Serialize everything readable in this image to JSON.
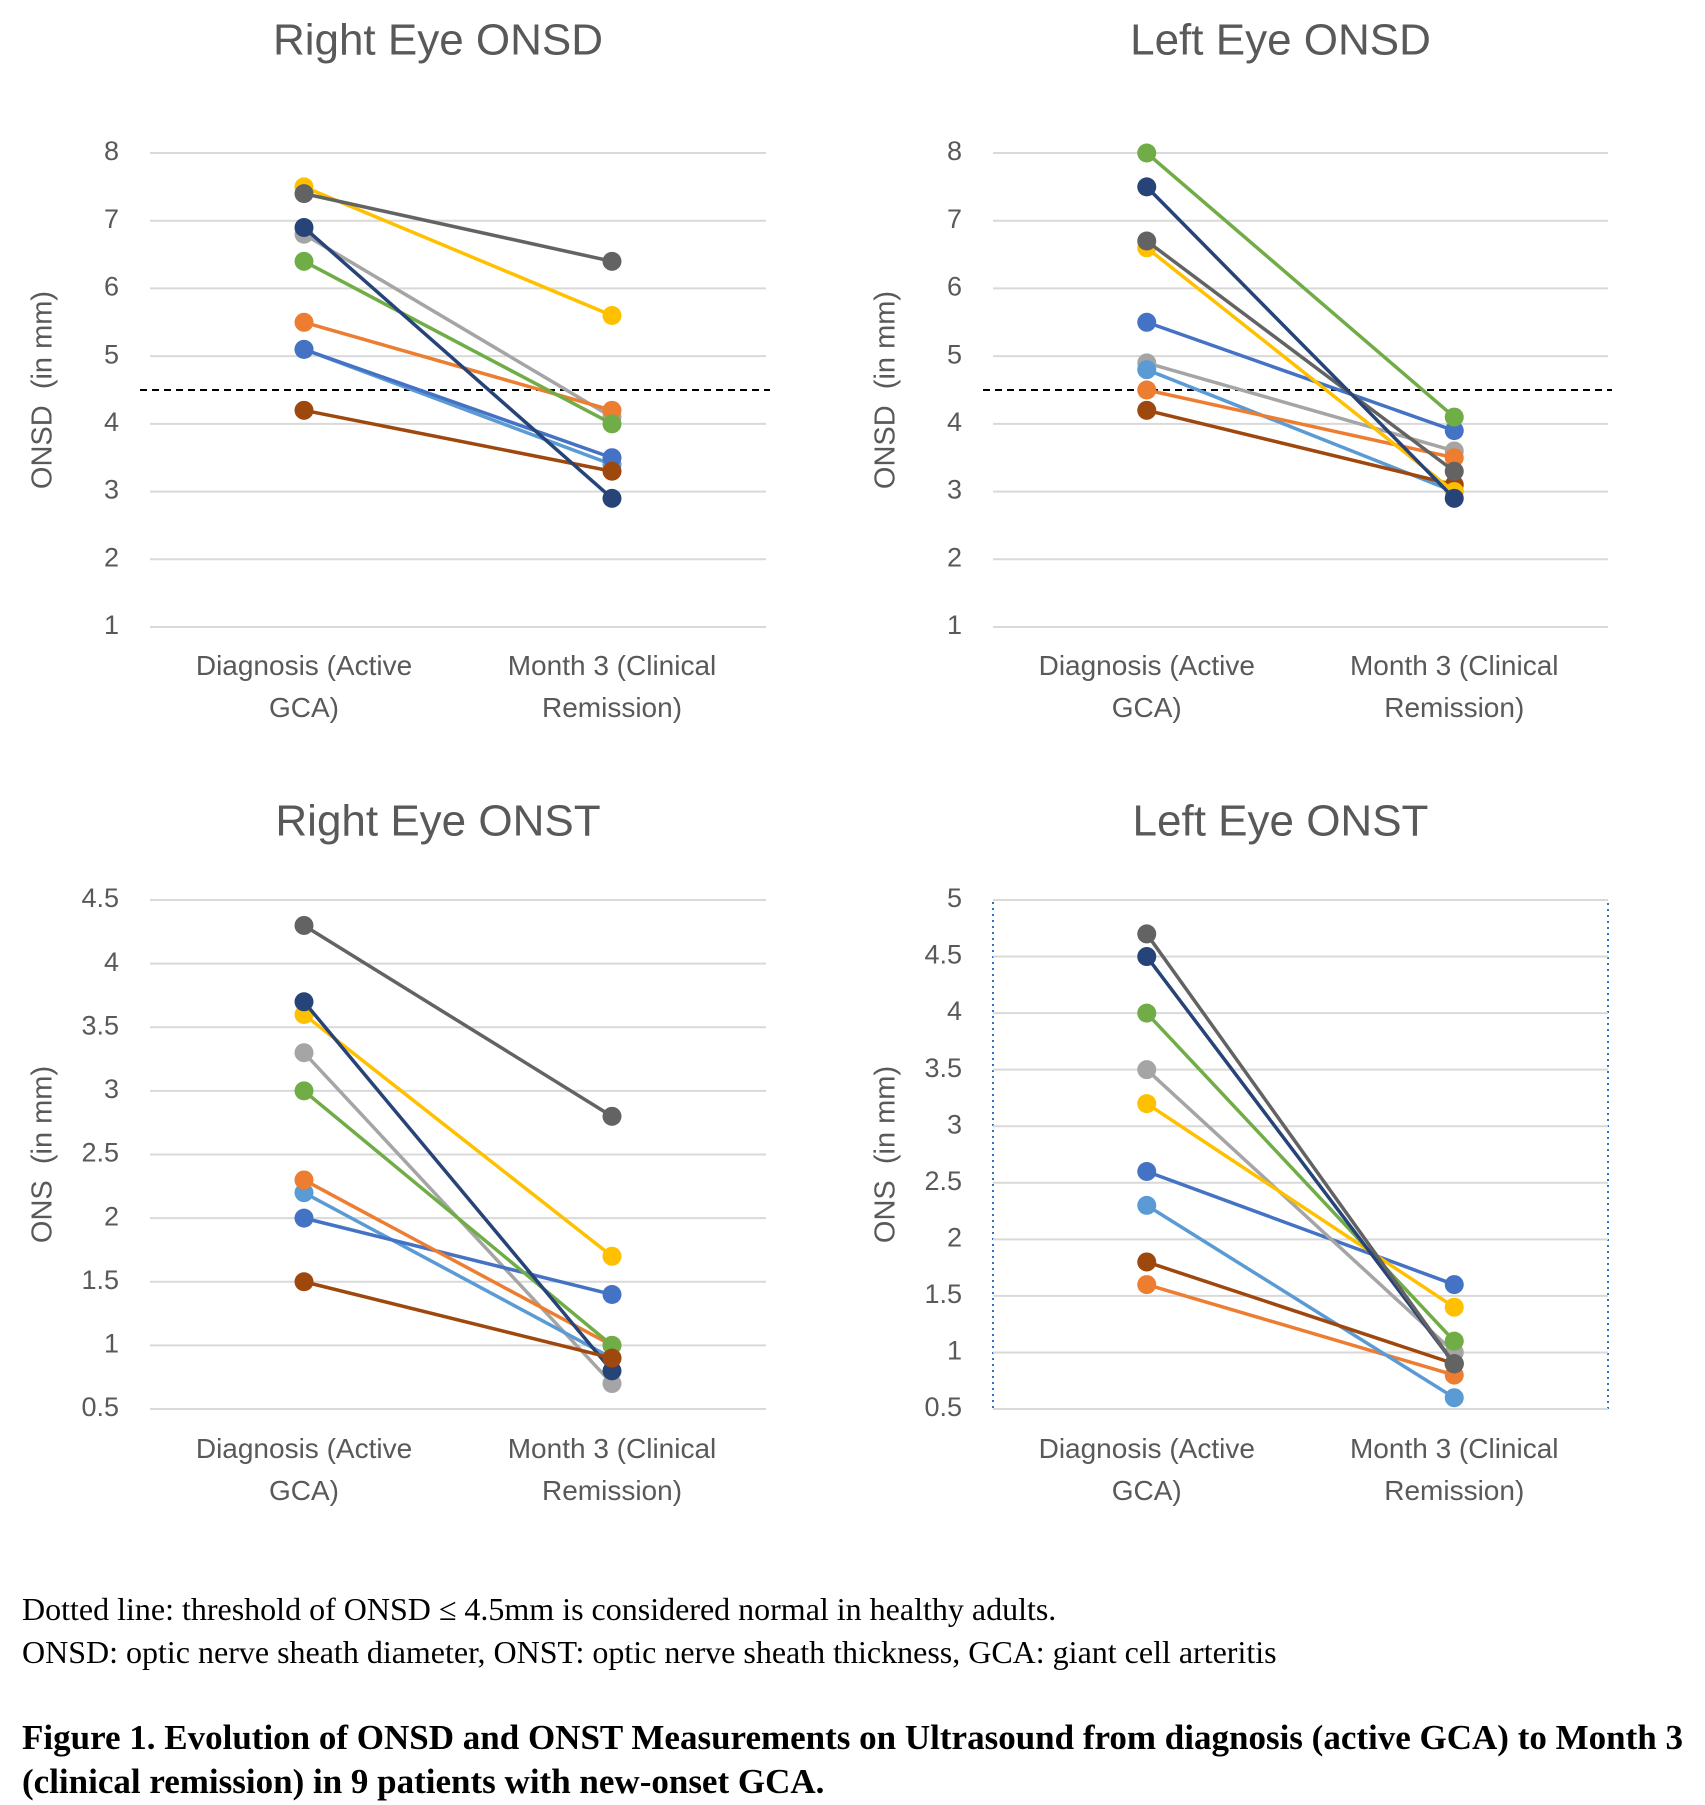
{
  "chart_data": [
    {
      "type": "line",
      "title": "Right Eye ONSD",
      "y_label": "ONSD  (in mm)",
      "categories": [
        "Diagnosis (Active GCA)",
        "Month 3 (Clinical Remission)"
      ],
      "ylim": [
        1,
        8
      ],
      "yticks": [
        1,
        2,
        3,
        4,
        5,
        6,
        7,
        8
      ],
      "grid": true,
      "threshold": 4.5,
      "series": [
        {
          "color": "#A5A5A5",
          "values": [
            6.8,
            4.1
          ]
        },
        {
          "color": "#5B9BD5",
          "values": [
            5.1,
            3.4
          ]
        },
        {
          "color": "#4472C4",
          "values": [
            5.1,
            3.5
          ]
        },
        {
          "color": "#ED7D31",
          "values": [
            5.5,
            4.2
          ]
        },
        {
          "color": "#70AD47",
          "values": [
            6.4,
            4.0
          ]
        },
        {
          "color": "#9E480E",
          "values": [
            4.2,
            3.3
          ]
        },
        {
          "color": "#FFC000",
          "values": [
            7.5,
            5.6
          ]
        },
        {
          "color": "#636363",
          "values": [
            7.4,
            6.4
          ]
        },
        {
          "color": "#264478",
          "values": [
            6.9,
            2.9
          ]
        }
      ]
    },
    {
      "type": "line",
      "title": "Left Eye ONSD",
      "y_label": "ONSD  (in mm)",
      "categories": [
        "Diagnosis (Active GCA)",
        "Month 3 (Clinical Remission)"
      ],
      "ylim": [
        1,
        8
      ],
      "yticks": [
        1,
        2,
        3,
        4,
        5,
        6,
        7,
        8
      ],
      "grid": true,
      "threshold": 4.5,
      "series": [
        {
          "color": "#A5A5A5",
          "values": [
            4.9,
            3.6
          ]
        },
        {
          "color": "#5B9BD5",
          "values": [
            4.8,
            3.0
          ]
        },
        {
          "color": "#4472C4",
          "values": [
            5.5,
            3.9
          ]
        },
        {
          "color": "#ED7D31",
          "values": [
            4.5,
            3.5
          ]
        },
        {
          "color": "#9E480E",
          "values": [
            4.2,
            3.1
          ]
        },
        {
          "color": "#FFC000",
          "values": [
            6.6,
            3.0
          ]
        },
        {
          "color": "#70AD47",
          "values": [
            8.0,
            4.1
          ]
        },
        {
          "color": "#636363",
          "values": [
            6.7,
            3.3
          ]
        },
        {
          "color": "#264478",
          "values": [
            7.5,
            2.9
          ]
        }
      ]
    },
    {
      "type": "line",
      "title": "Right Eye ONST",
      "y_label": "ONS  (in mm)",
      "categories": [
        "Diagnosis (Active GCA)",
        "Month 3 (Clinical Remission)"
      ],
      "ylim": [
        0.5,
        4.5
      ],
      "yticks": [
        0.5,
        1,
        1.5,
        2,
        2.5,
        3,
        3.5,
        4,
        4.5
      ],
      "grid": true,
      "series": [
        {
          "color": "#A5A5A5",
          "values": [
            3.3,
            0.7
          ]
        },
        {
          "color": "#5B9BD5",
          "values": [
            2.2,
            0.9
          ]
        },
        {
          "color": "#4472C4",
          "values": [
            2.0,
            1.4
          ]
        },
        {
          "color": "#ED7D31",
          "values": [
            2.3,
            1.0
          ]
        },
        {
          "color": "#70AD47",
          "values": [
            3.0,
            1.0
          ]
        },
        {
          "color": "#FFC000",
          "values": [
            3.6,
            1.7
          ]
        },
        {
          "color": "#636363",
          "values": [
            4.3,
            2.8
          ]
        },
        {
          "color": "#264478",
          "values": [
            3.7,
            0.8
          ]
        },
        {
          "color": "#9E480E",
          "values": [
            1.5,
            0.9
          ]
        }
      ]
    },
    {
      "type": "line",
      "title": "Left Eye ONST",
      "y_label": "ONS  (in mm)",
      "categories": [
        "Diagnosis (Active GCA)",
        "Month 3 (Clinical Remission)"
      ],
      "ylim": [
        0.5,
        5
      ],
      "yticks": [
        0.5,
        1,
        1.5,
        2,
        2.5,
        3,
        3.5,
        4,
        4.5,
        5
      ],
      "grid": true,
      "series": [
        {
          "color": "#ED7D31",
          "values": [
            1.6,
            0.8
          ]
        },
        {
          "color": "#5B9BD5",
          "values": [
            2.3,
            0.6
          ]
        },
        {
          "color": "#4472C4",
          "values": [
            2.6,
            1.6
          ]
        },
        {
          "color": "#A5A5A5",
          "values": [
            3.5,
            1.0
          ]
        },
        {
          "color": "#FFC000",
          "values": [
            3.2,
            1.4
          ]
        },
        {
          "color": "#70AD47",
          "values": [
            4.0,
            1.1
          ]
        },
        {
          "color": "#9E480E",
          "values": [
            1.8,
            0.9
          ]
        },
        {
          "color": "#264478",
          "values": [
            4.5,
            0.9
          ]
        },
        {
          "color": "#636363",
          "values": [
            4.7,
            0.9
          ]
        }
      ]
    }
  ],
  "notes": [
    "Dotted line: threshold of ONSD ≤ 4.5mm is considered normal in healthy adults.",
    "ONSD: optic nerve sheath diameter, ONST: optic nerve sheath thickness, GCA: giant cell arteritis"
  ],
  "caption": "Figure 1. Evolution of ONSD and ONST Measurements on Ultrasound from diagnosis (active GCA) to Month 3 (clinical remission) in 9 patients with new-onset GCA."
}
